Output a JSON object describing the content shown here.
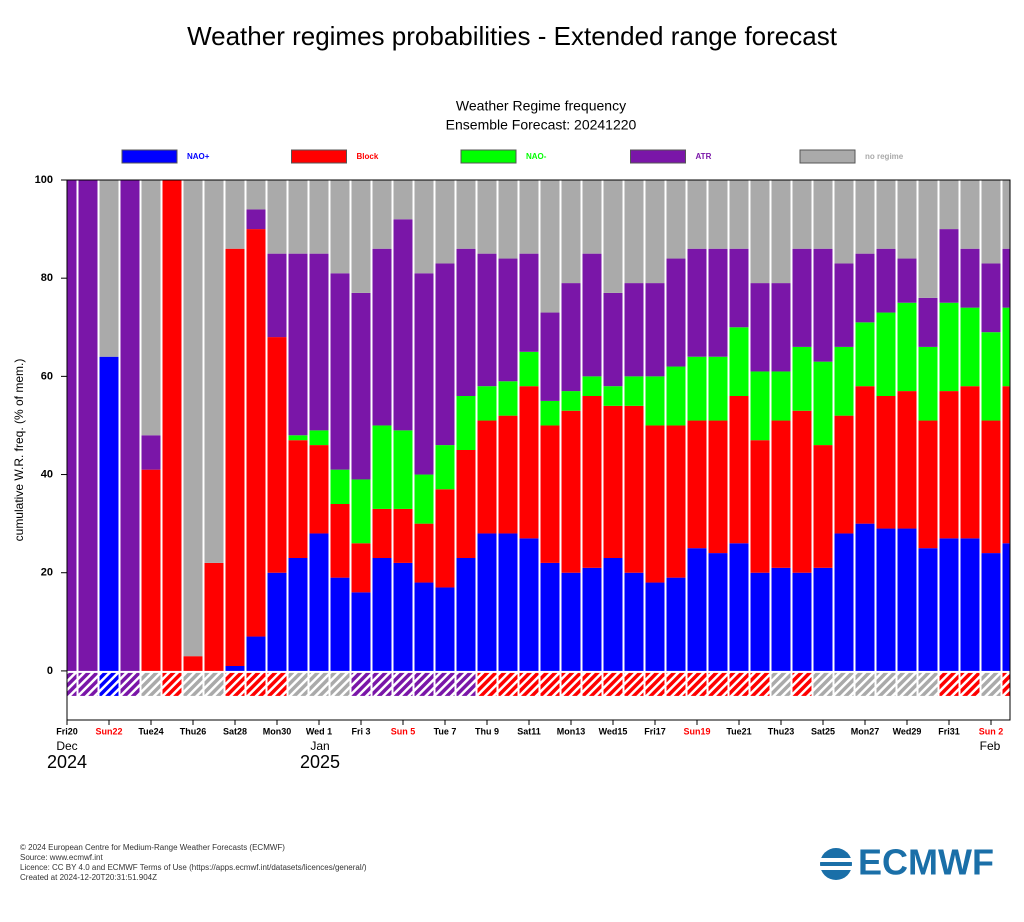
{
  "page_title": "Weather regimes probabilities - Extended range forecast",
  "chart_data": {
    "type": "stacked_bar",
    "title": "Weather Regime frequency",
    "subtitle": "Ensemble Forecast: 20241220",
    "y_label": "cumulative W.R. freq. (% of mem.)",
    "categories": [
      "Fri20",
      null,
      "Sun22",
      null,
      "Tue24",
      null,
      "Thu26",
      null,
      "Sat28",
      null,
      "Mon30",
      null,
      "Wed 1",
      null,
      "Fri 3",
      null,
      "Sun 5",
      null,
      "Tue 7",
      null,
      "Thu 9",
      null,
      "Sat11",
      null,
      "Mon13",
      null,
      "Wed15",
      null,
      "Fri17",
      null,
      "Sun19",
      null,
      "Tue21",
      null,
      "Thu23",
      null,
      "Sat25",
      null,
      "Mon27",
      null,
      "Wed29",
      null,
      "Fri31",
      null,
      "Sun 2",
      null
    ],
    "xtick_label_colors": [
      "#000000",
      null,
      "#ff0000",
      null,
      "#000000",
      null,
      "#000000",
      null,
      "#000000",
      null,
      "#000000",
      null,
      "#000000",
      null,
      "#000000",
      null,
      "#ff0000",
      null,
      "#000000",
      null,
      "#000000",
      null,
      "#000000",
      null,
      "#000000",
      null,
      "#000000",
      null,
      "#000000",
      null,
      "#ff0000",
      null,
      "#000000",
      null,
      "#000000",
      null,
      "#000000",
      null,
      "#000000",
      null,
      "#000000",
      null,
      "#000000",
      null,
      "#ff0000",
      null
    ],
    "x_annotations": [
      {
        "month": "Dec",
        "year": "2024"
      },
      {
        "month": "Jan",
        "year": "2025"
      },
      {
        "month": "Feb"
      }
    ],
    "series": [
      {
        "name": "NAO+",
        "color": "#0000ff",
        "values": [
          0,
          0,
          64,
          0,
          0,
          0,
          0,
          0,
          1,
          7,
          20,
          23,
          28,
          19,
          16,
          23,
          22,
          18,
          17,
          23,
          28,
          28,
          27,
          22,
          20,
          21,
          23,
          20,
          18,
          19,
          25,
          24,
          26,
          20,
          21,
          20,
          21,
          28,
          30,
          29,
          29,
          25,
          27,
          27,
          24,
          26
        ]
      },
      {
        "name": "Block",
        "color": "#ff0000",
        "values": [
          0,
          0,
          0,
          0,
          41,
          100,
          3,
          22,
          85,
          83,
          48,
          24,
          18,
          15,
          10,
          10,
          11,
          12,
          20,
          22,
          23,
          24,
          31,
          28,
          33,
          35,
          31,
          34,
          32,
          31,
          26,
          27,
          30,
          27,
          30,
          33,
          25,
          24,
          28,
          27,
          28,
          26,
          30,
          31,
          27,
          32
        ]
      },
      {
        "name": "NAO-",
        "color": "#00ff00",
        "values": [
          0,
          0,
          0,
          0,
          0,
          0,
          0,
          0,
          0,
          0,
          0,
          1,
          3,
          7,
          13,
          17,
          16,
          10,
          9,
          11,
          7,
          7,
          7,
          5,
          4,
          4,
          4,
          6,
          10,
          12,
          13,
          13,
          14,
          14,
          10,
          13,
          17,
          14,
          13,
          17,
          18,
          15,
          18,
          16,
          18,
          16
        ]
      },
      {
        "name": "ATR",
        "color": "#7a16a8",
        "values": [
          100,
          100,
          0,
          100,
          7,
          0,
          0,
          0,
          0,
          4,
          17,
          37,
          36,
          40,
          38,
          36,
          43,
          41,
          37,
          30,
          27,
          25,
          20,
          18,
          22,
          25,
          19,
          19,
          19,
          22,
          22,
          22,
          16,
          18,
          18,
          20,
          23,
          17,
          14,
          13,
          9,
          10,
          15,
          12,
          14,
          12
        ]
      },
      {
        "name": "no regime",
        "color": "#aaaaaa",
        "values": [
          0,
          0,
          36,
          0,
          52,
          0,
          97,
          78,
          14,
          6,
          15,
          15,
          15,
          19,
          23,
          14,
          8,
          19,
          17,
          14,
          15,
          16,
          15,
          27,
          21,
          15,
          23,
          21,
          21,
          16,
          14,
          14,
          14,
          21,
          21,
          14,
          14,
          17,
          15,
          14,
          16,
          24,
          10,
          14,
          17,
          14
        ]
      }
    ],
    "marker_regime": [
      "ATR",
      "ATR",
      "NAO+",
      "ATR",
      "no regime",
      "Block",
      "no regime",
      "no regime",
      "Block",
      "Block",
      "Block",
      "no regime",
      "no regime",
      "no regime",
      "ATR",
      "ATR",
      "ATR",
      "ATR",
      "ATR",
      "ATR",
      "Block",
      "Block",
      "Block",
      "Block",
      "Block",
      "Block",
      "Block",
      "Block",
      "Block",
      "Block",
      "Block",
      "Block",
      "Block",
      "Block",
      "no regime",
      "Block",
      "no regime",
      "no regime",
      "no regime",
      "no regime",
      "no regime",
      "no regime",
      "Block",
      "Block",
      "no regime",
      "Block"
    ],
    "ylim": [
      -10,
      100
    ],
    "yticks": [
      0,
      20,
      40,
      60,
      80,
      100
    ]
  },
  "footer": [
    "© 2024 European Centre for Medium-Range Weather Forecasts (ECMWF)",
    "Source: www.ecmwf.int",
    "Licence: CC BY 4.0 and ECMWF Terms of Use (https://apps.ecmwf.int/datasets/licences/general/)",
    "Created at 2024-12-20T20:31:51.904Z"
  ],
  "logo": "ECMWF"
}
